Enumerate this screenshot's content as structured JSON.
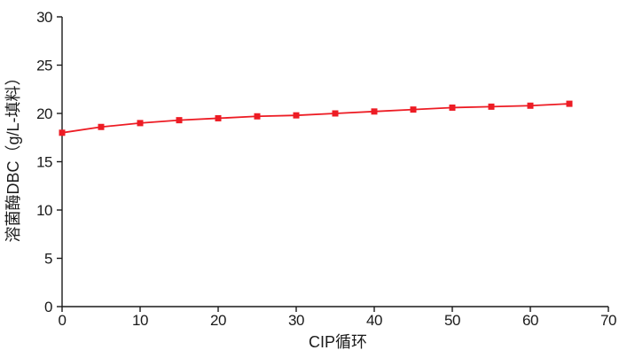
{
  "figure": {
    "background": "#ffffff",
    "axis_color": "#1a1a1a",
    "accent_color": "#ED1C24"
  },
  "chart_data": {
    "type": "line",
    "title": "",
    "xlabel": "CIP循环",
    "ylabel": "溶菌酶DBC（g/L-填料）",
    "xlim": [
      0,
      70
    ],
    "ylim": [
      0,
      30
    ],
    "xticks": [
      0,
      10,
      20,
      30,
      40,
      50,
      60,
      70
    ],
    "yticks": [
      0,
      5,
      10,
      15,
      20,
      25,
      30
    ],
    "grid": false,
    "legend": "none",
    "series": [
      {
        "name": "溶菌酶DBC",
        "marker": "square",
        "color": "#ED1C24",
        "x": [
          0,
          5,
          10,
          15,
          20,
          25,
          30,
          35,
          40,
          45,
          50,
          55,
          60,
          65
        ],
        "values": [
          18.0,
          18.6,
          19.0,
          19.3,
          19.5,
          19.7,
          19.8,
          20.0,
          20.2,
          20.4,
          20.6,
          20.7,
          20.8,
          21.0
        ]
      }
    ]
  }
}
